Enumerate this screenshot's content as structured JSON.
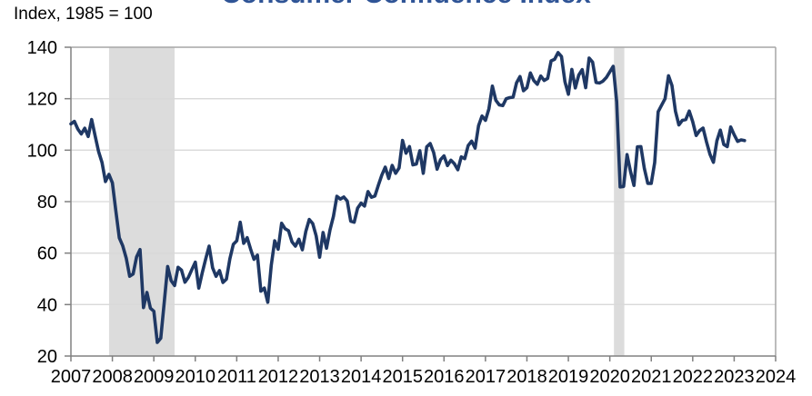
{
  "header": {
    "title": "Consumer Confidence Index",
    "units_label": "Index, 1985 = 100"
  },
  "chart_data": {
    "type": "line",
    "title": "Consumer Confidence Index",
    "subtitle": "",
    "xlabel": "",
    "ylabel": "Index, 1985 = 100",
    "xlim": [
      2007,
      2024
    ],
    "ylim": [
      20,
      140
    ],
    "x_ticks": [
      "2007",
      "2008",
      "2009",
      "2010",
      "2011",
      "2012",
      "2013",
      "2014",
      "2015",
      "2016",
      "2017",
      "2018",
      "2019",
      "2020",
      "2021",
      "2022",
      "2023",
      "2024"
    ],
    "y_ticks": [
      20,
      40,
      60,
      80,
      100,
      120,
      140
    ],
    "grid": true,
    "legend": false,
    "recession_bands": [
      {
        "from": 2007.92,
        "to": 2009.5
      },
      {
        "from": 2020.1,
        "to": 2020.35
      }
    ],
    "series": [
      {
        "name": "Consumer Confidence Index",
        "frequency": "monthly",
        "start_year": 2007,
        "values": [
          110.2,
          111.2,
          108.2,
          106.3,
          108.5,
          105.3,
          111.9,
          105.6,
          99.5,
          95.2,
          87.8,
          90.6,
          87.3,
          76.4,
          65.9,
          62.8,
          58.1,
          51.0,
          51.9,
          58.5,
          61.4,
          38.8,
          44.7,
          38.6,
          37.4,
          25.3,
          26.9,
          40.8,
          54.8,
          49.3,
          47.4,
          54.5,
          53.4,
          48.7,
          50.6,
          53.6,
          56.5,
          46.4,
          52.3,
          57.7,
          62.7,
          54.3,
          51.0,
          53.2,
          48.6,
          49.9,
          57.8,
          63.4,
          64.8,
          72.0,
          63.8,
          66.0,
          61.7,
          57.6,
          59.2,
          45.2,
          46.4,
          40.9,
          55.2,
          64.8,
          61.5,
          71.6,
          69.5,
          68.7,
          64.4,
          62.7,
          65.4,
          61.3,
          68.4,
          73.1,
          71.5,
          66.7,
          58.4,
          68.0,
          61.9,
          69.0,
          74.3,
          82.1,
          81.0,
          81.8,
          80.2,
          72.4,
          72.0,
          77.5,
          79.4,
          78.3,
          83.9,
          81.7,
          82.2,
          86.4,
          90.3,
          93.4,
          89.0,
          94.1,
          91.0,
          93.1,
          103.8,
          98.8,
          101.4,
          94.3,
          94.6,
          99.8,
          91.0,
          101.3,
          102.6,
          99.1,
          92.6,
          96.3,
          97.8,
          94.0,
          96.1,
          94.7,
          92.4,
          97.4,
          96.7,
          101.8,
          103.5,
          100.8,
          109.5,
          113.3,
          111.6,
          116.1,
          124.9,
          119.4,
          117.6,
          117.3,
          120.0,
          120.4,
          120.6,
          126.2,
          128.6,
          123.1,
          124.3,
          130.0,
          127.0,
          125.6,
          128.8,
          127.1,
          127.9,
          134.7,
          135.3,
          137.9,
          136.4,
          126.6,
          121.7,
          131.4,
          124.2,
          129.2,
          131.3,
          124.3,
          135.8,
          134.2,
          126.3,
          126.1,
          126.8,
          128.2,
          130.4,
          132.6,
          118.8,
          85.7,
          85.9,
          98.3,
          91.7,
          86.3,
          101.3,
          101.4,
          92.9,
          87.1,
          87.1,
          95.2,
          114.9,
          117.5,
          120.0,
          128.9,
          125.1,
          115.2,
          109.8,
          111.6,
          111.9,
          115.2,
          111.1,
          105.7,
          107.6,
          108.6,
          103.2,
          98.4,
          95.3,
          103.6,
          107.8,
          102.2,
          101.4,
          109.0,
          106.0,
          103.4,
          104.0,
          103.7
        ]
      }
    ],
    "colors": {
      "line": "#1F3864",
      "recession_band": "#DCDCDC",
      "gridline": "#D9D9D9",
      "plot_border": "#A6A6A6",
      "axis": "#808080",
      "tick": "#808080",
      "tick_label": "#000000",
      "title": "#2F5496",
      "background": "#FFFFFF"
    }
  }
}
